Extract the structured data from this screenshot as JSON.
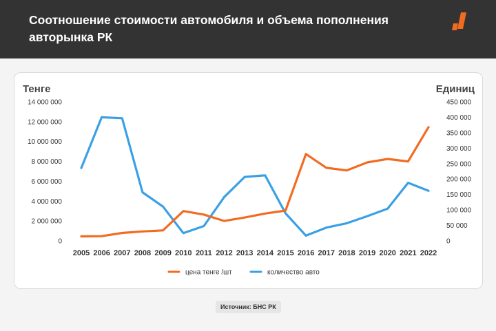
{
  "header": {
    "title": "Соотношение стоимости автомобиля и объема пополнения авторынка РК"
  },
  "source": "Источник: БНС РК",
  "colors": {
    "header_bg": "#333333",
    "accent": "#f26b21",
    "series_price": "#f26b21",
    "series_count": "#3aa0e6"
  },
  "chart_data": {
    "type": "line",
    "y_left_label": "Тенге",
    "y_right_label": "Единиц",
    "x": [
      "2005",
      "2006",
      "2007",
      "2008",
      "2009",
      "2010",
      "2011",
      "2012",
      "2013",
      "2014",
      "2015",
      "2016",
      "2017",
      "2018",
      "2019",
      "2020",
      "2021",
      "2022"
    ],
    "y_left_ticks": [
      "14 000 000",
      "12 000 000",
      "10 000 000",
      "8 000 000",
      "6 000 000",
      "4 000 000",
      "2 000 000",
      "0"
    ],
    "y_right_ticks": [
      "450 000",
      "400 000",
      "350 000",
      "300 000",
      "250 000",
      "200 000",
      "150 000",
      "100 000",
      "50 000",
      "0"
    ],
    "ylim_left": [
      0,
      14000000
    ],
    "ylim_right": [
      0,
      450000
    ],
    "series": [
      {
        "name": "цена тенге /шт",
        "axis": "left",
        "values": [
          450000,
          470000,
          800000,
          950000,
          1050000,
          3000000,
          2650000,
          2000000,
          2350000,
          2750000,
          3050000,
          8750000,
          7350000,
          7100000,
          7900000,
          8250000,
          8000000,
          11450000
        ]
      },
      {
        "name": "количество авто",
        "axis": "right",
        "values": [
          236000,
          400000,
          397000,
          157000,
          111000,
          25000,
          48000,
          142000,
          207000,
          212000,
          89000,
          17000,
          43000,
          57000,
          80000,
          104000,
          188000,
          162000
        ]
      }
    ],
    "legend_position": "bottom",
    "grid": false
  }
}
